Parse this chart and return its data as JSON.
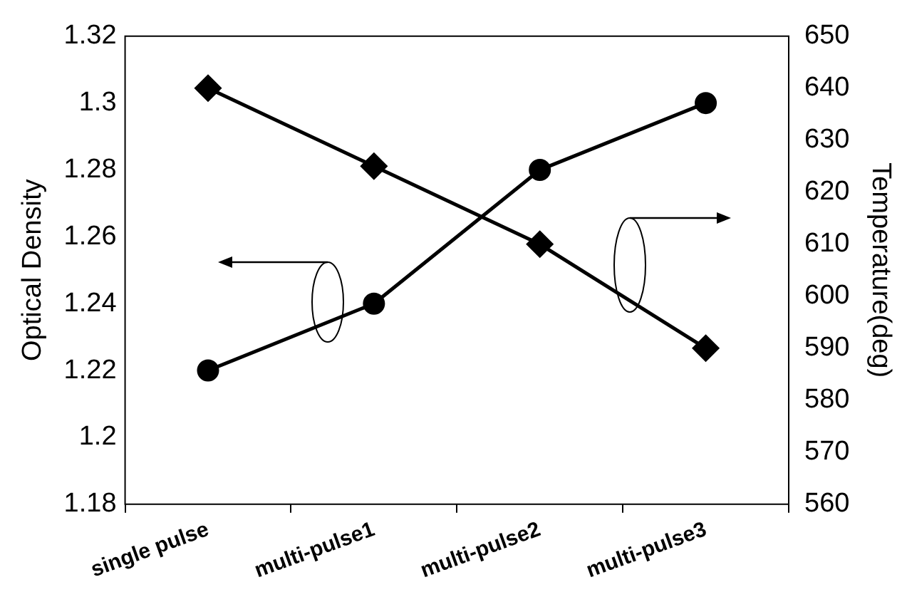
{
  "chart_data": {
    "type": "line",
    "categories": [
      "single pulse",
      "multi-pulse1",
      "multi-pulse2",
      "multi-pulse3"
    ],
    "ylabel": "Optical Density",
    "y2label": "Temperature(deg)",
    "ylim": [
      1.18,
      1.32
    ],
    "yticks": [
      1.18,
      1.2,
      1.22,
      1.24,
      1.26,
      1.28,
      1.3,
      1.32
    ],
    "y2lim": [
      560,
      650
    ],
    "y2ticks": [
      560,
      570,
      580,
      590,
      600,
      610,
      620,
      630,
      640,
      650
    ],
    "grid": false,
    "legend": false,
    "line_style": "solid",
    "series": [
      {
        "color": "#000000",
        "marker": "circle",
        "values": [
          1.22,
          1.24,
          1.28,
          1.3
        ]
      },
      {
        "color": "#000000",
        "marker": "diamond",
        "axis": "y2",
        "values": [
          640,
          625,
          610,
          590
        ]
      }
    ]
  }
}
